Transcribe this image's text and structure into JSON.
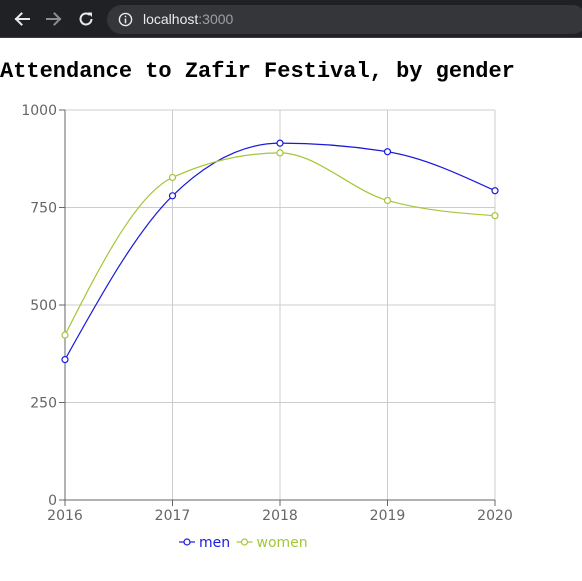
{
  "browser": {
    "url_host": "localhost",
    "url_port": ":3000"
  },
  "chart_data": {
    "type": "line",
    "title": "Attendance to Zafir Festival, by gender",
    "xlabel": "",
    "ylabel": "",
    "categories": [
      "2016",
      "2017",
      "2018",
      "2019",
      "2020"
    ],
    "ylim": [
      0,
      1000
    ],
    "yticks": [
      "0",
      "250",
      "500",
      "750",
      "1000"
    ],
    "grid": true,
    "legend_position": "bottom",
    "series": [
      {
        "name": "men",
        "color": "#1a1adb",
        "values": [
          360,
          780,
          915,
          893,
          793
        ]
      },
      {
        "name": "women",
        "color": "#a4c639",
        "values": [
          423,
          827,
          890,
          768,
          729
        ]
      }
    ]
  }
}
